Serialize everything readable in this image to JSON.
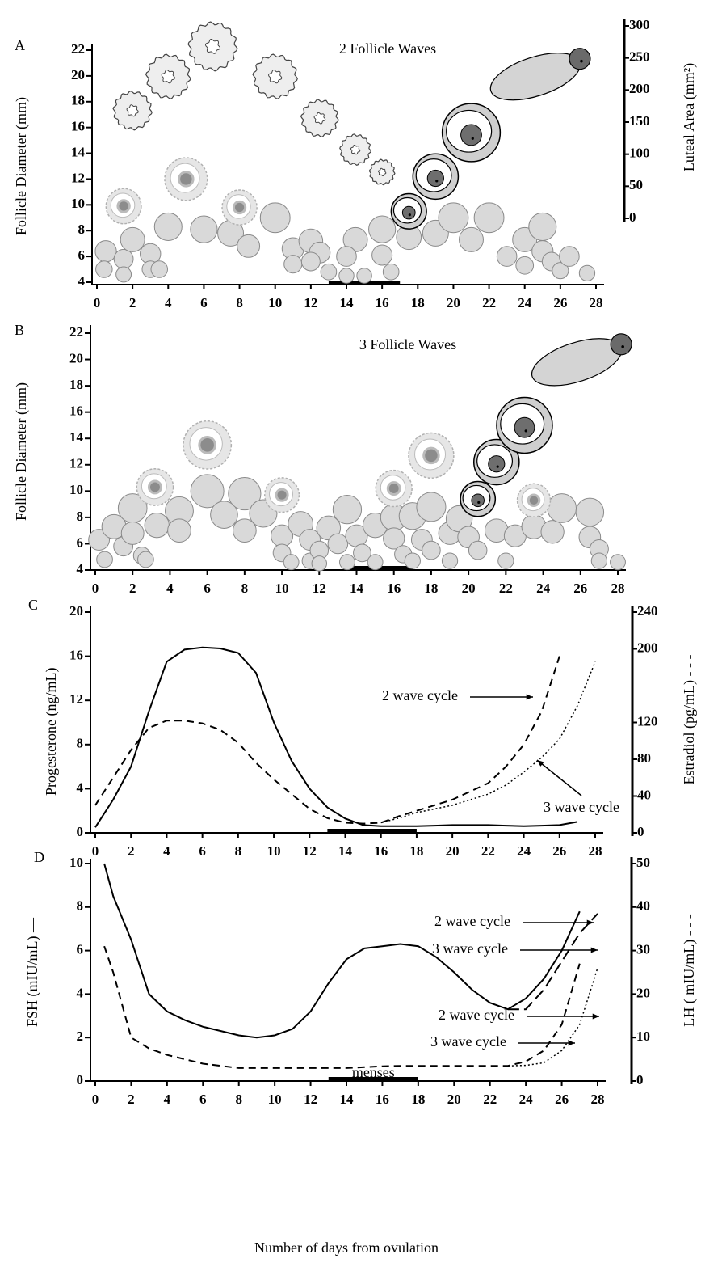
{
  "chart_data": [
    {
      "type": "scatter",
      "label": "A",
      "title": "2 Follicle Waves",
      "y_label": "Follicle Diameter (mm)",
      "y2_label": "Luteal Area (mm²)",
      "xlim": [
        0,
        28
      ],
      "xticks": [
        0,
        2,
        4,
        6,
        8,
        10,
        12,
        14,
        16,
        18,
        20,
        22,
        24,
        26,
        28
      ],
      "ylim": [
        4,
        22
      ],
      "yticks": [
        4,
        6,
        8,
        10,
        12,
        14,
        16,
        18,
        20,
        22
      ],
      "y2lim": [
        0,
        300
      ],
      "y2ticks": [
        0,
        50,
        100,
        150,
        200,
        250,
        300
      ],
      "menses": [
        13,
        17
      ],
      "series": [
        {
          "style": "small",
          "color": "#d9d9d9",
          "x": [
            0.5,
            0.4,
            1.5,
            1.5,
            2,
            3,
            3,
            3.5,
            4,
            6,
            7.5,
            8.5,
            10,
            11,
            11,
            12,
            12.5,
            13,
            12,
            14.5,
            14,
            14,
            15,
            16,
            16,
            16.5,
            17.5,
            19,
            20,
            21,
            22,
            23,
            24,
            24,
            25,
            25,
            25.5,
            26,
            26.5,
            27.5
          ],
          "values": [
            6.4,
            5,
            5.8,
            4.6,
            7.3,
            6.2,
            5,
            5,
            8.3,
            8.1,
            7.8,
            6.8,
            9,
            6.6,
            5.4,
            7.2,
            6.3,
            4.8,
            5.6,
            7.3,
            6,
            4.5,
            4.5,
            8.1,
            6.1,
            4.8,
            7.5,
            7.8,
            9,
            7.3,
            9,
            6,
            7.3,
            5.3,
            6.4,
            8.3,
            5.6,
            4.9,
            6,
            4.7
          ]
        },
        {
          "style": "antral",
          "color": "#e6e6e6",
          "x": [
            1.5,
            5,
            8
          ],
          "values": [
            9.9,
            12,
            9.8
          ]
        },
        {
          "style": "ovulatory",
          "color": "#cfcfcf",
          "x": [
            17.5,
            19,
            21
          ],
          "values": [
            9.5,
            12.2,
            15.6
          ]
        },
        {
          "style": "cl",
          "axis": "y2",
          "color": "#eeeeee",
          "x": [
            2,
            4,
            6.5,
            10,
            12.5,
            14.5,
            16
          ],
          "values": [
            168,
            221,
            268,
            221,
            156,
            107,
            72
          ]
        },
        {
          "style": "new-cl",
          "axis": "y2",
          "color": "#d4d4d4",
          "x": [
            24.6
          ],
          "values": [
            221
          ]
        }
      ]
    },
    {
      "type": "scatter",
      "label": "B",
      "title": "3 Follicle Waves",
      "y_label": "Follicle Diameter (mm)",
      "xlim": [
        0,
        28
      ],
      "xticks": [
        0,
        2,
        4,
        6,
        8,
        10,
        12,
        14,
        16,
        18,
        20,
        22,
        24,
        26,
        28
      ],
      "ylim": [
        4,
        22
      ],
      "yticks": [
        4,
        6,
        8,
        10,
        12,
        14,
        16,
        18,
        20,
        22
      ],
      "menses": [
        13.5,
        17
      ],
      "series": [
        {
          "style": "small",
          "color": "#d9d9d9",
          "x": [
            0.2,
            0.5,
            1,
            1.5,
            2,
            2,
            2.5,
            2.7,
            3.3,
            4.5,
            4.5,
            6,
            6.9,
            8,
            8,
            9,
            10,
            10,
            10.5,
            11,
            11.5,
            11.5,
            12,
            12,
            12.5,
            13,
            13.5,
            13.5,
            14,
            14.3,
            15,
            15,
            16,
            16,
            16.5,
            17,
            17,
            17.5,
            18,
            18,
            19,
            19,
            19.5,
            20,
            20.5,
            21.5,
            22,
            22.5,
            23.5,
            24.5,
            25,
            26.5,
            26.5,
            27,
            27,
            28
          ],
          "values": [
            6.3,
            4.8,
            7.3,
            5.8,
            8.7,
            6.8,
            5.1,
            4.8,
            7.4,
            8.5,
            7,
            10,
            8.2,
            9.8,
            7,
            8.3,
            6.6,
            5.3,
            4.6,
            7.5,
            6.3,
            4.7,
            5.5,
            4.5,
            7.2,
            6,
            8.6,
            4.6,
            6.6,
            5.3,
            7.4,
            4.6,
            8,
            6.4,
            5.2,
            4.7,
            8.1,
            6.3,
            8.8,
            5.5,
            6.8,
            4.7,
            7.9,
            6.5,
            5.5,
            7,
            4.7,
            6.6,
            7.3,
            6.9,
            8.7,
            8.4,
            6.5,
            5.6,
            4.7,
            4.6
          ]
        },
        {
          "style": "antral",
          "color": "#e6e6e6",
          "x": [
            3.2,
            6,
            10,
            16,
            18,
            23.5
          ],
          "values": [
            10.3,
            13.5,
            9.7,
            10.2,
            12.7,
            9.3
          ]
        },
        {
          "style": "ovulatory",
          "color": "#cfcfcf",
          "x": [
            20.5,
            21.5,
            23
          ],
          "values": [
            9.4,
            12.2,
            15
          ]
        },
        {
          "style": "new-cl",
          "color": "#d4d4d4",
          "x": [
            25.8
          ],
          "values": [
            19.8
          ]
        }
      ]
    },
    {
      "type": "line",
      "label": "C",
      "y_label": "Progesterone (ng/mL) —",
      "y2_label": "Estradiol (pg/mL) - - -",
      "xlim": [
        0,
        28
      ],
      "xticks": [
        0,
        2,
        4,
        6,
        8,
        10,
        12,
        14,
        16,
        18,
        20,
        22,
        24,
        26,
        28
      ],
      "ylim": [
        0,
        20
      ],
      "yticks": [
        0,
        4,
        8,
        12,
        16,
        20
      ],
      "y2lim": [
        0,
        240
      ],
      "y2ticks": [
        0,
        40,
        80,
        120,
        200,
        240
      ],
      "menses": [
        13,
        18
      ],
      "annotations": [
        "2 wave cycle",
        "3 wave cycle"
      ],
      "x": [
        0,
        1,
        2,
        3,
        4,
        5,
        6,
        7,
        8,
        9,
        10,
        11,
        12,
        13,
        14,
        15,
        16,
        17,
        18,
        19,
        20,
        21,
        22,
        23,
        24,
        25,
        26,
        27,
        28
      ],
      "series": [
        {
          "line_style": "solid",
          "color": "#000000",
          "values": [
            0.5,
            3,
            6,
            11,
            15.5,
            16.6,
            16.8,
            16.7,
            16.3,
            14.5,
            10,
            6.5,
            4,
            2.3,
            1.3,
            0.7,
            0.6,
            0.6,
            0.6,
            0.65,
            0.7,
            0.7,
            0.7,
            0.65,
            0.6,
            0.65,
            0.7,
            1,
            null
          ]
        },
        {
          "line_style": "dashed",
          "axis": "y2",
          "color": "#000000",
          "values": [
            30,
            60,
            90,
            114,
            122,
            122,
            119,
            112,
            98,
            76,
            58,
            42,
            26,
            16,
            11,
            10,
            11,
            18,
            24,
            30,
            36,
            45,
            54,
            72,
            96,
            132,
            192,
            null,
            null
          ]
        },
        {
          "line_style": "dotted",
          "axis": "y2",
          "color": "#000000",
          "values": [
            null,
            null,
            null,
            null,
            null,
            null,
            null,
            null,
            null,
            null,
            null,
            null,
            null,
            null,
            null,
            null,
            11,
            16,
            22,
            26,
            30,
            36,
            42,
            52,
            66,
            82,
            102,
            138,
            186
          ]
        }
      ]
    },
    {
      "type": "line",
      "label": "D",
      "y_label": "FSH (mIU/mL) —",
      "y2_label": "LH ( mIU/mL) - - -",
      "x_label": "Number of days from ovulation",
      "xlim": [
        0,
        28
      ],
      "xticks": [
        0,
        2,
        4,
        6,
        8,
        10,
        12,
        14,
        16,
        18,
        20,
        22,
        24,
        26,
        28
      ],
      "ylim": [
        0,
        10
      ],
      "yticks": [
        0,
        2,
        4,
        6,
        8,
        10
      ],
      "y2lim": [
        0,
        50
      ],
      "y2ticks": [
        0,
        10,
        20,
        30,
        40,
        50
      ],
      "menses": [
        13,
        18
      ],
      "menses_label": "menses",
      "annotations": [
        "2 wave cycle",
        "3 wave cycle",
        "2 wave cycle",
        "3 wave cycle"
      ],
      "x": [
        0.5,
        1,
        2,
        3,
        4,
        5,
        6,
        7,
        8,
        9,
        10,
        11,
        12,
        13,
        14,
        15,
        16,
        17,
        18,
        19,
        20,
        21,
        22,
        23,
        24,
        25,
        26,
        27,
        28
      ],
      "series": [
        {
          "line_style": "solid",
          "color": "#000000",
          "values": [
            10,
            8.5,
            6.5,
            4,
            3.2,
            2.8,
            2.5,
            2.3,
            2.1,
            2.0,
            2.1,
            2.4,
            3.2,
            4.5,
            5.6,
            6.1,
            6.2,
            6.3,
            6.2,
            5.7,
            5.0,
            4.2,
            3.6,
            3.3,
            3.8,
            4.7,
            6.0,
            7.8,
            null
          ]
        },
        {
          "line_style": "longdash",
          "color": "#000000",
          "values": [
            null,
            null,
            null,
            null,
            null,
            null,
            null,
            null,
            null,
            null,
            null,
            null,
            null,
            null,
            null,
            null,
            null,
            null,
            null,
            null,
            null,
            null,
            null,
            3.3,
            3.3,
            4.2,
            5.5,
            6.8,
            7.7
          ]
        },
        {
          "line_style": "dashed",
          "axis": "y2",
          "color": "#000000",
          "values": [
            31,
            25,
            10,
            7.5,
            6,
            5,
            4,
            3.5,
            3,
            3,
            3,
            3,
            3,
            3,
            3,
            3.2,
            3.4,
            3.5,
            3.5,
            3.5,
            3.5,
            3.5,
            3.5,
            3.5,
            4.5,
            7,
            13,
            27,
            null
          ]
        },
        {
          "line_style": "dotted",
          "axis": "y2",
          "color": "#000000",
          "values": [
            null,
            null,
            null,
            null,
            null,
            null,
            null,
            null,
            null,
            null,
            null,
            null,
            null,
            null,
            null,
            null,
            null,
            null,
            null,
            null,
            null,
            null,
            null,
            3.5,
            3.6,
            4.2,
            7,
            13,
            26
          ]
        }
      ]
    }
  ]
}
